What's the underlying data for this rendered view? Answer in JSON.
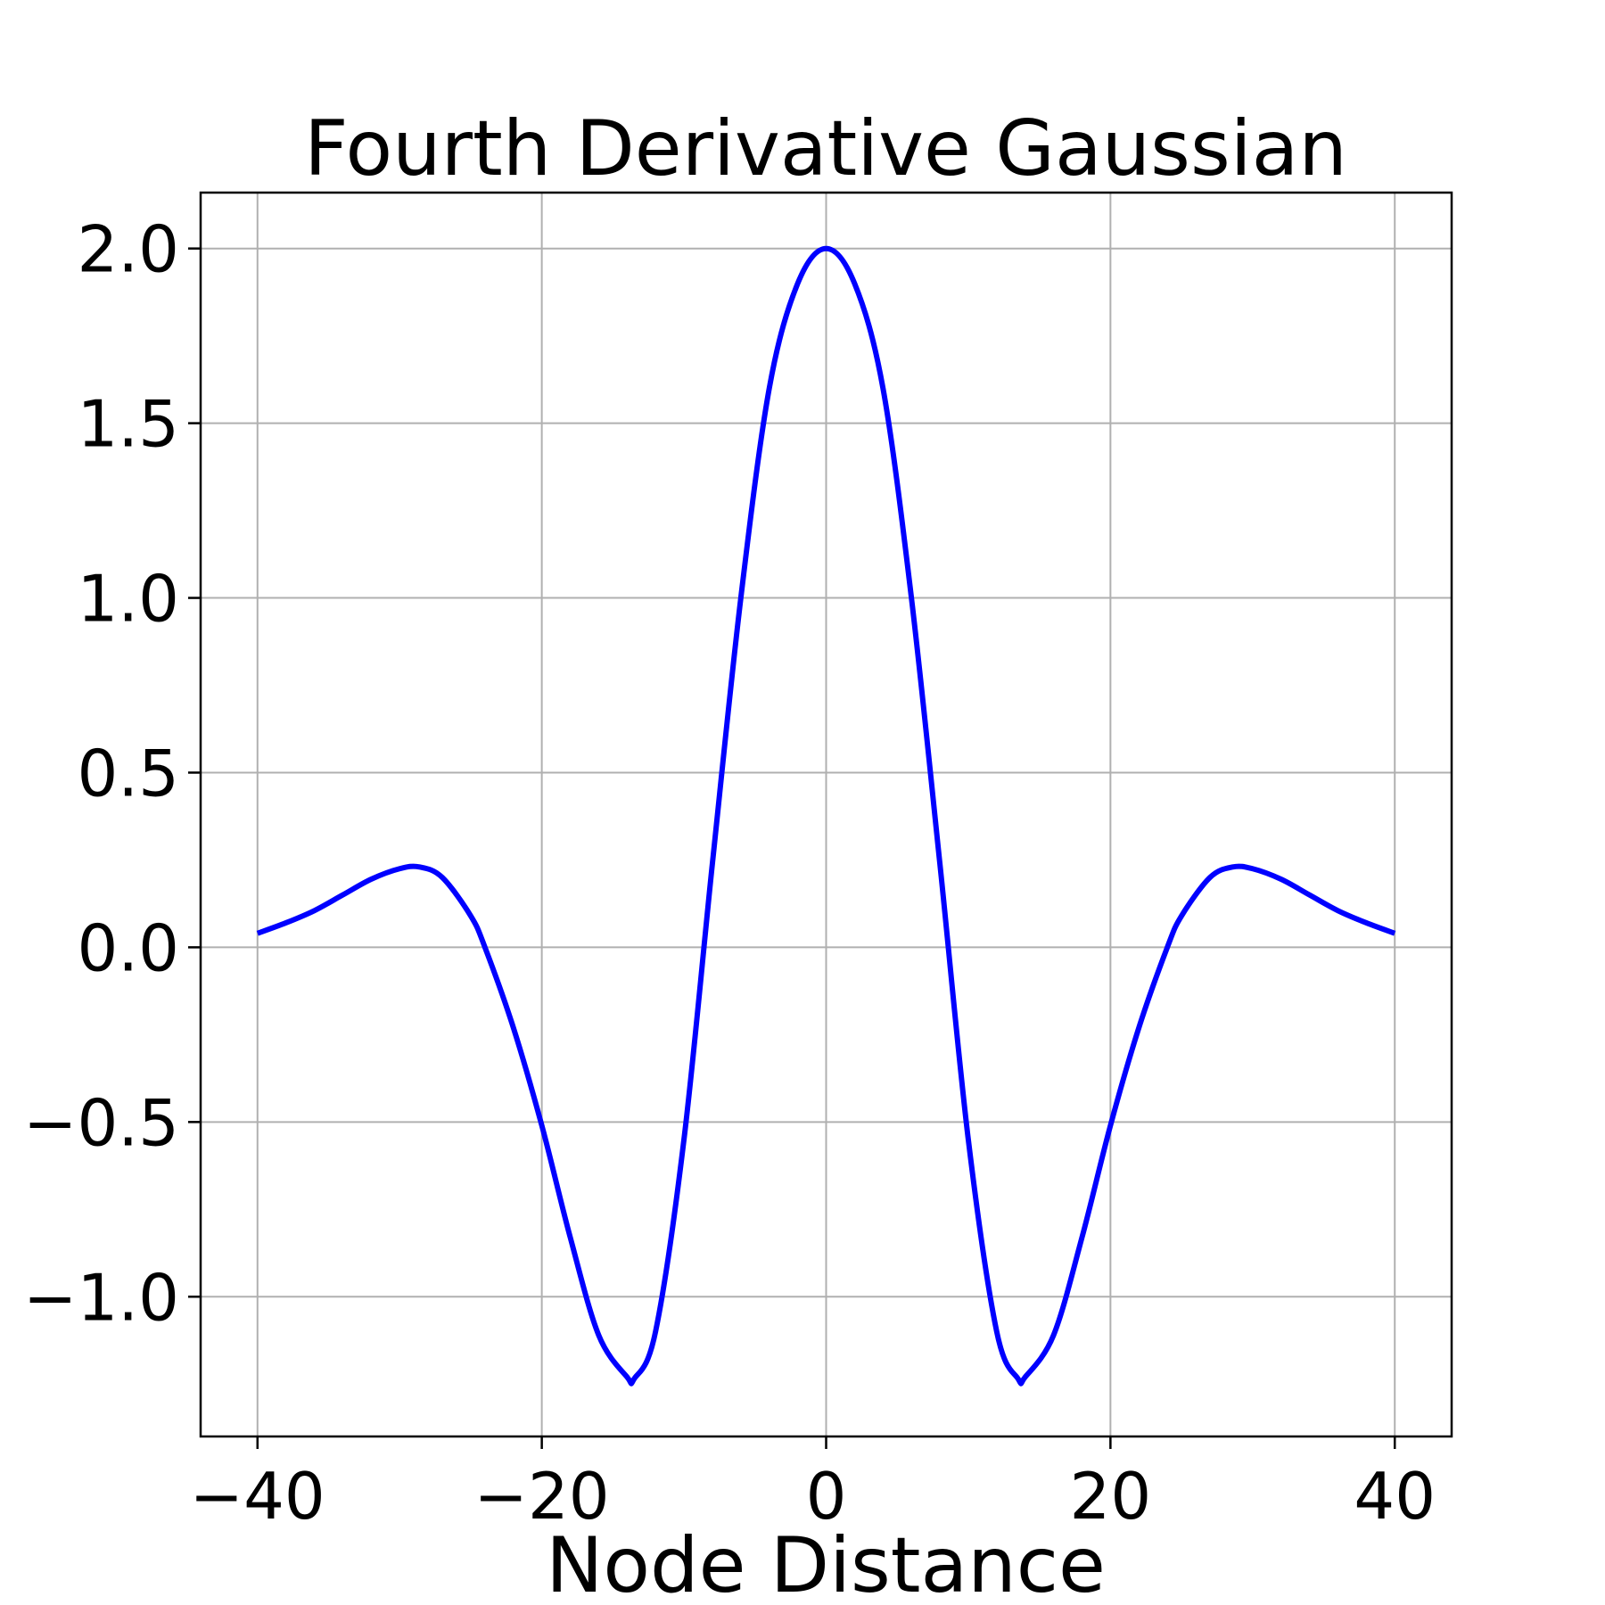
{
  "chart_data": {
    "type": "line",
    "title": "Fourth Derivative Gaussian",
    "xlabel": "Node Distance",
    "ylabel": "",
    "xlim": [
      -44,
      44
    ],
    "ylim": [
      -1.4,
      2.16
    ],
    "xticks": [
      -40,
      -20,
      0,
      20,
      40
    ],
    "xtick_labels": [
      "−40",
      "−20",
      "0",
      "20",
      "40"
    ],
    "yticks": [
      -1.0,
      -0.5,
      0.0,
      0.5,
      1.0,
      1.5,
      2.0
    ],
    "ytick_labels": [
      "−1.0",
      "−0.5",
      "0.0",
      "0.5",
      "1.0",
      "1.5",
      "2.0"
    ],
    "grid": true,
    "series": [
      {
        "color": "#0000ff",
        "x": [
          -40,
          -38,
          -36,
          -34,
          -32,
          -30,
          -28.6,
          -27,
          -25,
          -24,
          -22,
          -20,
          -18,
          -16,
          -14,
          -13.5,
          -12,
          -10,
          -8,
          -6,
          -4,
          -2,
          0,
          2,
          4,
          6,
          8,
          10,
          12,
          13.5,
          14,
          16,
          18,
          20,
          22,
          24,
          25,
          27,
          28.6,
          30,
          32,
          34,
          36,
          38,
          40
        ],
        "y": [
          0.04,
          0.07,
          0.105,
          0.15,
          0.195,
          0.225,
          0.23,
          0.2,
          0.09,
          0.0,
          -0.23,
          -0.51,
          -0.83,
          -1.11,
          -1.23,
          -1.235,
          -1.1,
          -0.55,
          0.24,
          1.0,
          1.6,
          1.9,
          2.0,
          1.9,
          1.6,
          1.0,
          0.24,
          -0.55,
          -1.1,
          -1.235,
          -1.23,
          -1.11,
          -0.83,
          -0.51,
          -0.23,
          0.0,
          0.09,
          0.2,
          0.23,
          0.225,
          0.195,
          0.15,
          0.105,
          0.07,
          0.04
        ]
      }
    ]
  }
}
